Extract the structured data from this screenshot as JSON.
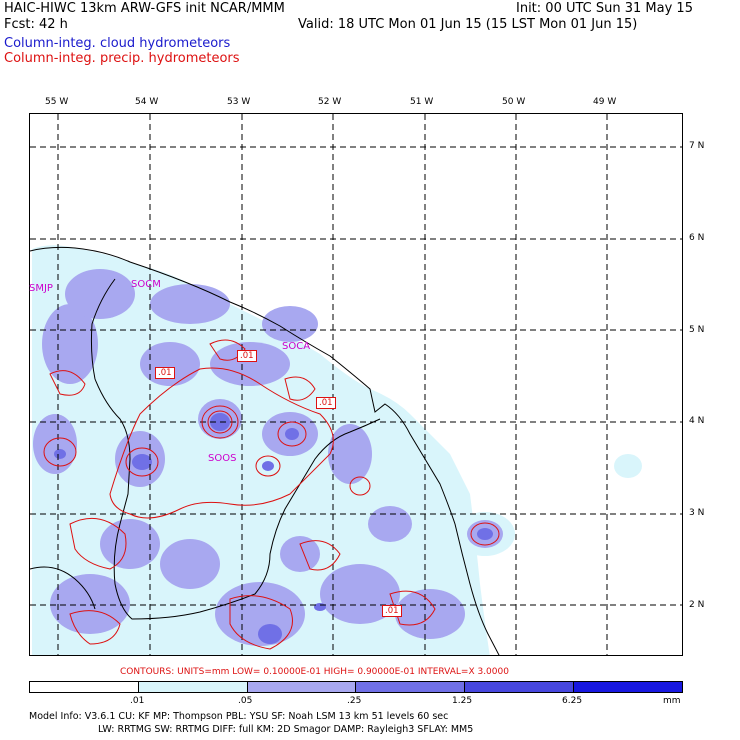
{
  "header": {
    "line1_left": "HAIC-HIWC 13km ARW-GFS init   NCAR/MMM",
    "line1_right": "Init: 00 UTC Sun 31 May 15",
    "line2_left": "Fcst:   42 h",
    "line2_right": "Valid: 18 UTC Mon 01 Jun 15 (15 LST Mon 01 Jun 15)",
    "field1": "Column-integ. cloud hydrometeors",
    "field2": "Column-integ. precip. hydrometeors"
  },
  "map": {
    "lon_labels": [
      "55 W",
      "54 W",
      "53 W",
      "52 W",
      "51 W",
      "50 W",
      "49 W"
    ],
    "lat_labels": [
      "7 N",
      "6 N",
      "5 N",
      "4 N",
      "3 N",
      "2 N"
    ],
    "stations": [
      "SMJP",
      "SOCM",
      "SOCA",
      "SOOS"
    ],
    "contour_labels": [
      ".01",
      ".01",
      ".01",
      ".01"
    ]
  },
  "contours_text": "CONTOURS:  UNITS=mm  LOW= 0.10000E-01  HIGH= 0.90000E-01  INTERVAL=X  3.0000",
  "legend": {
    "ticks": [
      ".01",
      ".05",
      ".25",
      "1.25",
      "6.25"
    ],
    "unit": "mm",
    "colors": [
      "#ffffff",
      "#d9f5fb",
      "#a8a8f0",
      "#7070e6",
      "#4747de",
      "#1818e0"
    ]
  },
  "footer": {
    "line1": "Model Info: V3.6.1   CU: KF     MP: Thompson    PBL: YSU      SF: Noah LSM     13 km   51 levels   60 sec",
    "line2": "LW: RRTMG   SW: RRTMG  DIFF: full   KM: 2D Smagor DAMP: Rayleigh3  SFLAY: MM5"
  }
}
